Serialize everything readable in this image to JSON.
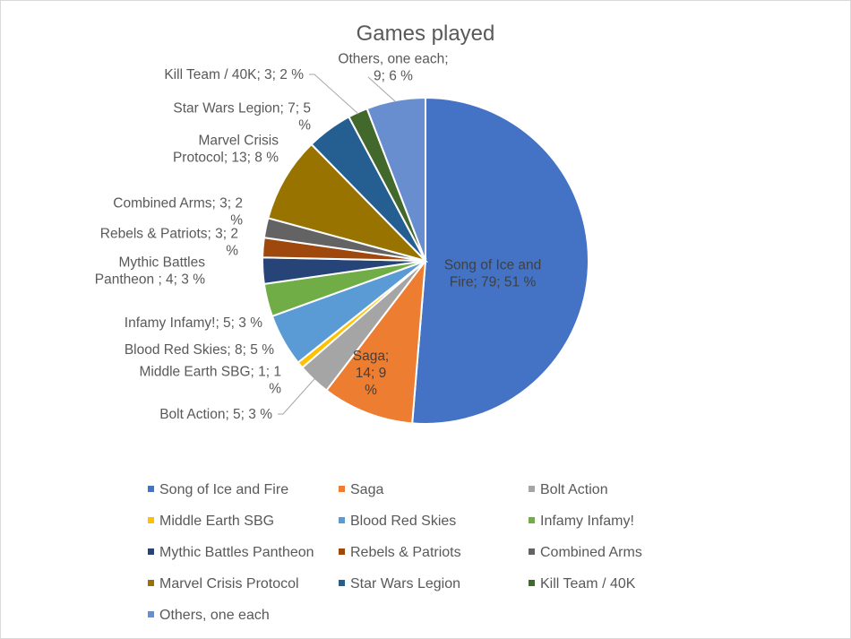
{
  "chart_data": {
    "type": "pie",
    "title": "Games played",
    "start_angle_deg": 0,
    "direction": "clockwise",
    "legend_position": "bottom",
    "series": [
      {
        "name": "Song of Ice and Fire",
        "value": 79,
        "percent": 51,
        "color": "#4472C4",
        "label_lines": [
          "Song of Ice and",
          "Fire; 79; 51 %"
        ]
      },
      {
        "name": "Saga",
        "value": 14,
        "percent": 9,
        "color": "#ED7D31",
        "label_lines": [
          "Saga;",
          "14; 9",
          "%"
        ]
      },
      {
        "name": "Bolt Action",
        "value": 5,
        "percent": 3,
        "color": "#A5A5A5",
        "label_lines": [
          "Bolt Action; 5; 3 %"
        ]
      },
      {
        "name": "Middle Earth SBG",
        "value": 1,
        "percent": 1,
        "color": "#FFC000",
        "label_lines": [
          "Middle Earth SBG; 1; 1",
          "%"
        ]
      },
      {
        "name": "Blood Red Skies",
        "value": 8,
        "percent": 5,
        "color": "#5B9BD5",
        "label_lines": [
          "Blood Red Skies; 8; 5 %"
        ]
      },
      {
        "name": "Infamy Infamy!",
        "value": 5,
        "percent": 3,
        "color": "#70AD47",
        "label_lines": [
          "Infamy Infamy!; 5; 3 %"
        ]
      },
      {
        "name": "Mythic Battles Pantheon",
        "value": 4,
        "percent": 3,
        "color": "#264478",
        "label_lines": [
          "Mythic Battles",
          "Pantheon ; 4; 3 %"
        ]
      },
      {
        "name": "Rebels & Patriots",
        "value": 3,
        "percent": 2,
        "color": "#9E480E",
        "label_lines": [
          "Rebels & Patriots; 3; 2",
          "%"
        ]
      },
      {
        "name": "Combined Arms",
        "value": 3,
        "percent": 2,
        "color": "#636363",
        "label_lines": [
          "Combined Arms; 3; 2",
          "%"
        ]
      },
      {
        "name": "Marvel Crisis Protocol",
        "value": 13,
        "percent": 8,
        "color": "#997300",
        "label_lines": [
          "Marvel Crisis",
          "Protocol; 13; 8 %"
        ]
      },
      {
        "name": "Star Wars Legion",
        "value": 7,
        "percent": 5,
        "color": "#255E91",
        "label_lines": [
          "Star Wars Legion; 7; 5",
          "%"
        ]
      },
      {
        "name": "Kill Team / 40K",
        "value": 3,
        "percent": 2,
        "color": "#43682B",
        "label_lines": [
          "Kill Team / 40K; 3; 2 %"
        ]
      },
      {
        "name": "Others, one each",
        "value": 9,
        "percent": 6,
        "color": "#698ED0",
        "label_lines": [
          "Others, one each;",
          "9; 6 %"
        ]
      }
    ]
  }
}
